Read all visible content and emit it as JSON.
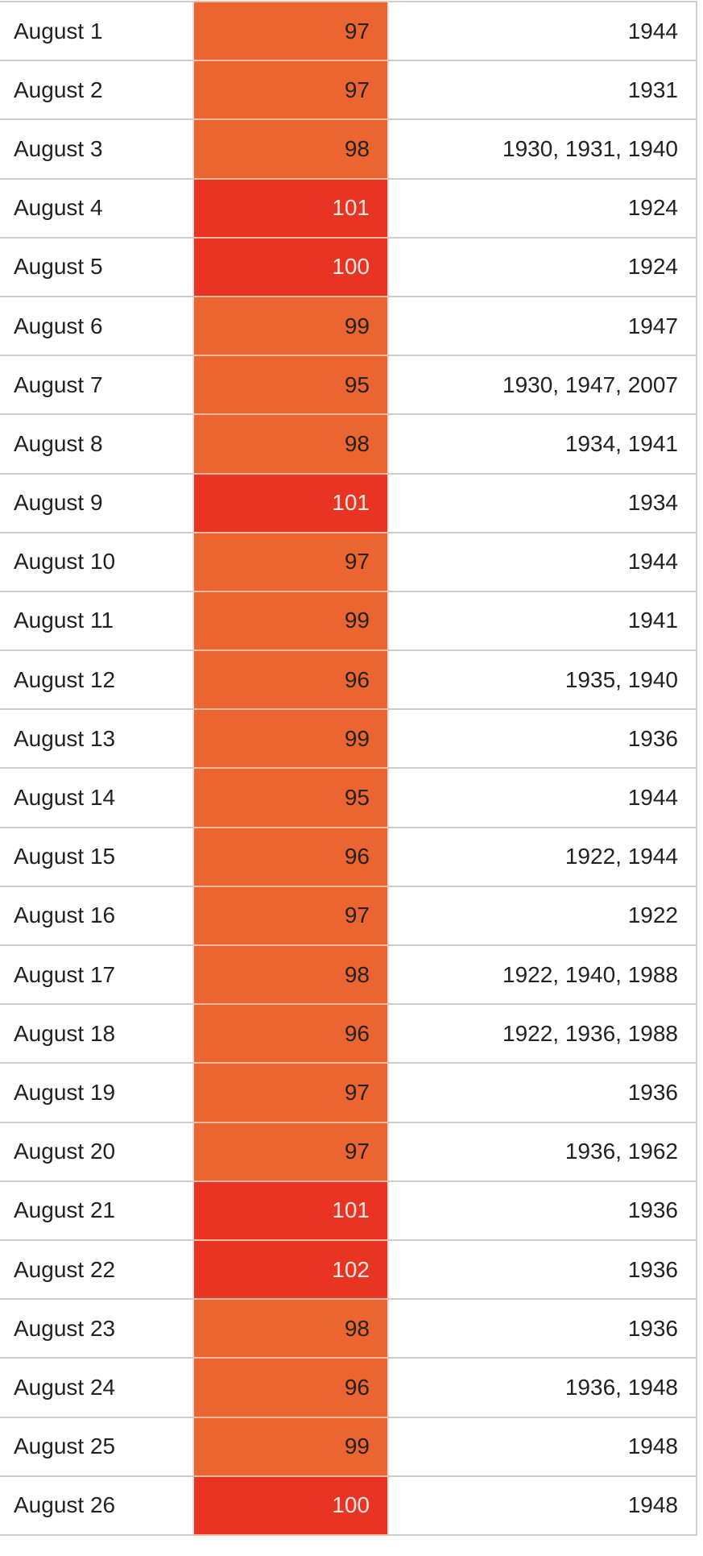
{
  "colors": {
    "warm": "#EC6430",
    "hot": "#E93424"
  },
  "rows": [
    {
      "date": "August 1",
      "temp": "97",
      "years": "1944"
    },
    {
      "date": "August 2",
      "temp": "97",
      "years": "1931"
    },
    {
      "date": "August 3",
      "temp": "98",
      "years": "1930, 1931, 1940"
    },
    {
      "date": "August 4",
      "temp": "101",
      "years": "1924"
    },
    {
      "date": "August 5",
      "temp": "100",
      "years": "1924"
    },
    {
      "date": "August 6",
      "temp": "99",
      "years": "1947"
    },
    {
      "date": "August 7",
      "temp": "95",
      "years": "1930, 1947, 2007"
    },
    {
      "date": "August 8",
      "temp": "98",
      "years": "1934, 1941"
    },
    {
      "date": "August 9",
      "temp": "101",
      "years": "1934"
    },
    {
      "date": "August 10",
      "temp": "97",
      "years": "1944"
    },
    {
      "date": "August 11",
      "temp": "99",
      "years": "1941"
    },
    {
      "date": "August 12",
      "temp": "96",
      "years": "1935, 1940"
    },
    {
      "date": "August 13",
      "temp": "99",
      "years": "1936"
    },
    {
      "date": "August 14",
      "temp": "95",
      "years": "1944"
    },
    {
      "date": "August 15",
      "temp": "96",
      "years": "1922, 1944"
    },
    {
      "date": "August 16",
      "temp": "97",
      "years": "1922"
    },
    {
      "date": "August 17",
      "temp": "98",
      "years": "1922, 1940, 1988"
    },
    {
      "date": "August 18",
      "temp": "96",
      "years": "1922, 1936, 1988"
    },
    {
      "date": "August 19",
      "temp": "97",
      "years": "1936"
    },
    {
      "date": "August 20",
      "temp": "97",
      "years": "1936, 1962"
    },
    {
      "date": "August 21",
      "temp": "101",
      "years": "1936"
    },
    {
      "date": "August 22",
      "temp": "102",
      "years": "1936"
    },
    {
      "date": "August 23",
      "temp": "98",
      "years": "1936"
    },
    {
      "date": "August 24",
      "temp": "96",
      "years": "1936, 1948"
    },
    {
      "date": "August 25",
      "temp": "99",
      "years": "1948"
    },
    {
      "date": "August 26",
      "temp": "100",
      "years": "1948"
    }
  ]
}
